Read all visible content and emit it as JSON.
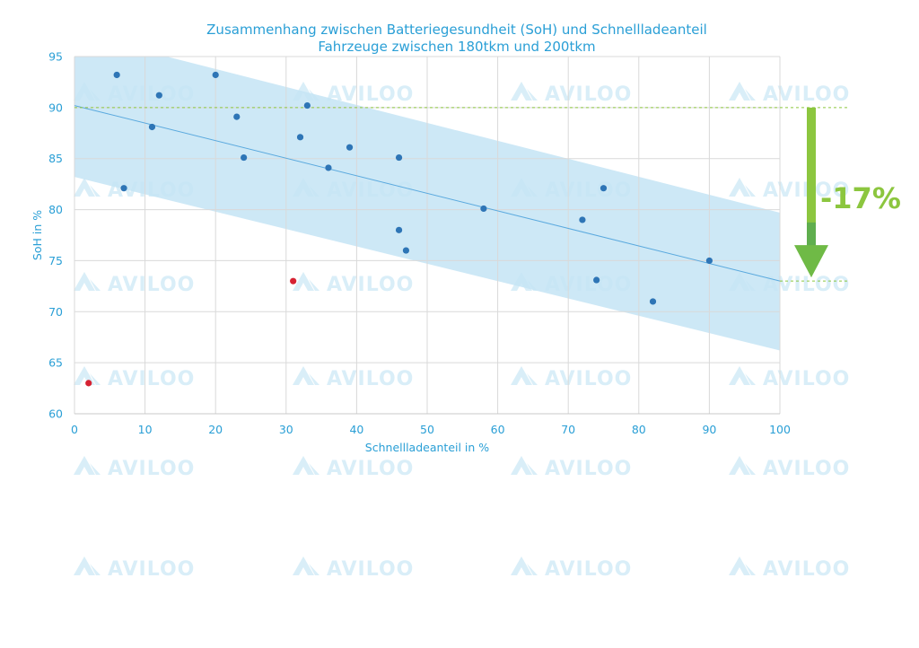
{
  "chart_data": {
    "type": "scatter",
    "title": "Zusammenhang zwischen Batteriegesundheit (SoH) und Schnellladeanteil",
    "subtitle": "Fahrzeuge zwischen 180tkm und 200tkm",
    "xlabel": "Schnellladeanteil in %",
    "ylabel": "SoH in %",
    "xlim": [
      0,
      100
    ],
    "ylim": [
      60,
      95
    ],
    "xticks": [
      "0",
      "10",
      "20",
      "30",
      "40",
      "50",
      "60",
      "70",
      "80",
      "90",
      "100"
    ],
    "yticks": [
      "60",
      "65",
      "70",
      "75",
      "80",
      "85",
      "90",
      "95"
    ],
    "grid": true,
    "regression_line": {
      "x": [
        0,
        100
      ],
      "y": [
        90.2,
        73.0
      ]
    },
    "confidence_band": {
      "x": [
        0,
        100
      ],
      "upper": [
        97.3,
        79.7
      ],
      "lower": [
        83.2,
        66.2
      ]
    },
    "reference_lines": [
      90,
      73
    ],
    "series": [
      {
        "color": "#2e75b6",
        "points": [
          [
            6,
            93.2
          ],
          [
            7,
            82.1
          ],
          [
            11,
            88.1
          ],
          [
            12,
            91.2
          ],
          [
            20,
            93.2
          ],
          [
            23,
            89.1
          ],
          [
            24,
            85.1
          ],
          [
            32,
            87.1
          ],
          [
            33,
            90.2
          ],
          [
            36,
            84.1
          ],
          [
            39,
            86.1
          ],
          [
            46,
            85.1
          ],
          [
            46,
            78.0
          ],
          [
            47,
            76.0
          ],
          [
            58,
            80.1
          ],
          [
            72,
            79.0
          ],
          [
            74,
            73.1
          ],
          [
            75,
            82.1
          ],
          [
            82,
            71.0
          ],
          [
            90,
            75.0
          ]
        ]
      },
      {
        "color": "#d62232",
        "points": [
          [
            2,
            63.0
          ],
          [
            31,
            73.0
          ]
        ]
      }
    ],
    "annotation": {
      "text": "-17%",
      "color": "#8cc63f"
    }
  },
  "watermark": {
    "text": "AVILOO"
  },
  "colors": {
    "accent": "#2a9fd6",
    "band": "#c4e4f5",
    "grid": "#d9d9d9",
    "regression": "#5aa9de",
    "reference": "#8cc63f"
  }
}
